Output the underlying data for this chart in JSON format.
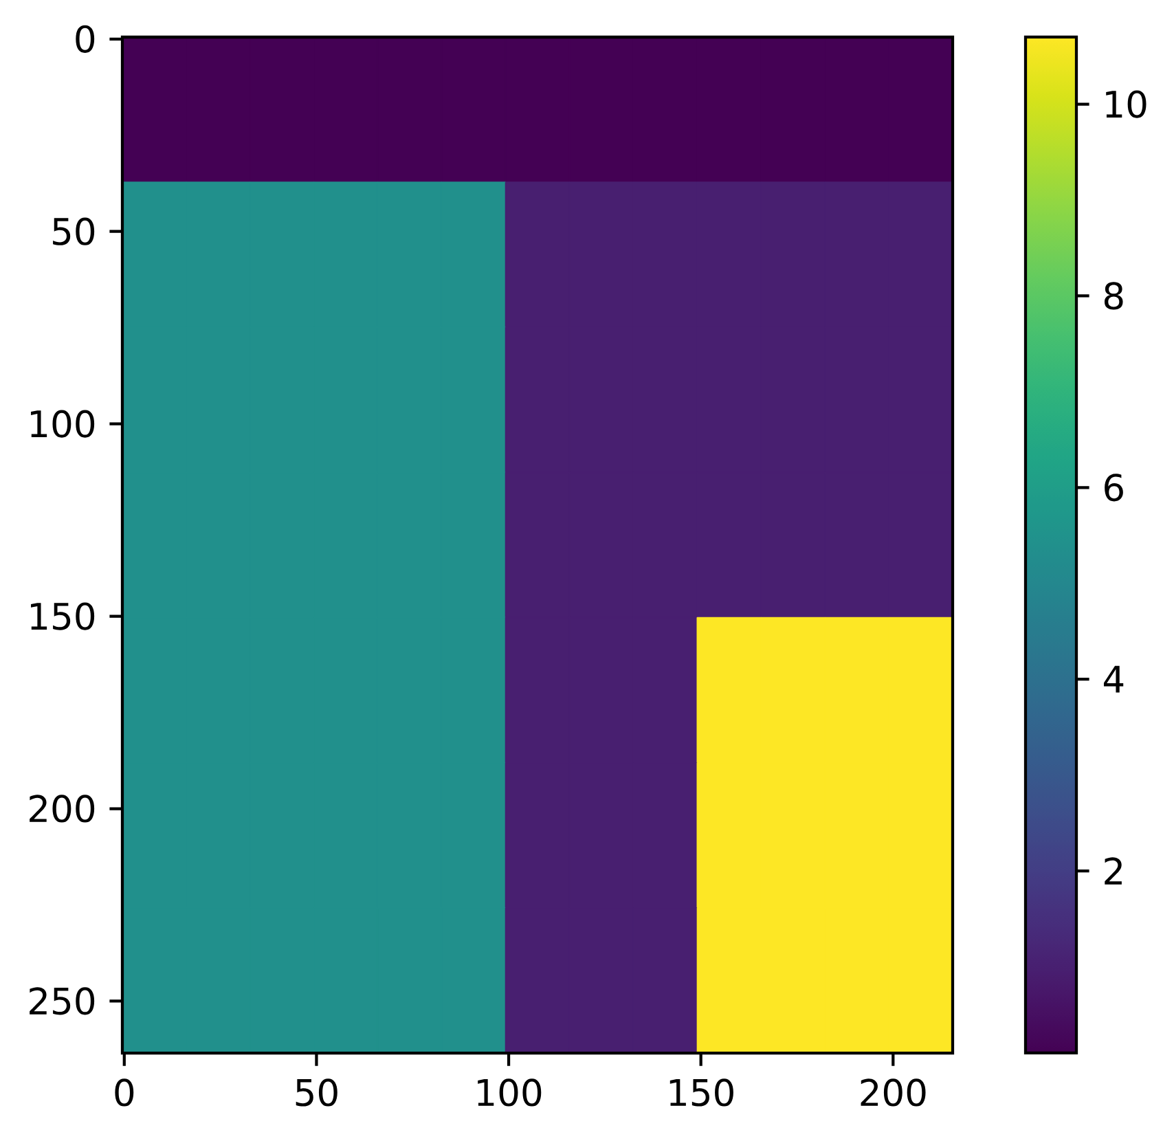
{
  "chart_data": {
    "type": "heatmap",
    "cells": [
      [
        0.1,
        0.1,
        0.1,
        0.1,
        0.1,
        0.1,
        0.1,
        0.1,
        0.1,
        0.1,
        0.1,
        0.1,
        0.1
      ],
      [
        5.4,
        5.4,
        5.4,
        5.4,
        5.4,
        5.4,
        1.0,
        1.0,
        1.0,
        1.0,
        1.0,
        1.0,
        1.0
      ],
      [
        5.4,
        5.4,
        5.4,
        5.4,
        5.4,
        5.4,
        1.0,
        1.0,
        1.0,
        1.0,
        1.0,
        1.0,
        1.0
      ],
      [
        5.4,
        5.4,
        5.4,
        5.4,
        5.4,
        5.4,
        1.0,
        1.0,
        1.0,
        1.0,
        1.0,
        1.0,
        1.0
      ],
      [
        5.4,
        5.4,
        5.4,
        5.4,
        5.4,
        5.4,
        1.0,
        1.0,
        1.0,
        10.7,
        10.7,
        10.7,
        10.7
      ],
      [
        5.4,
        5.4,
        5.4,
        5.4,
        5.4,
        5.4,
        1.0,
        1.0,
        1.0,
        10.7,
        10.7,
        10.7,
        10.7
      ],
      [
        5.4,
        5.4,
        5.4,
        5.4,
        5.4,
        5.4,
        1.0,
        1.0,
        1.0,
        10.7,
        10.7,
        10.7,
        10.7
      ]
    ],
    "xlim": [
      -0.5,
      215.5
    ],
    "ylim": [
      263.5,
      -0.5
    ],
    "xticks": [
      0,
      50,
      100,
      150,
      200
    ],
    "yticks": [
      0,
      50,
      100,
      150,
      200,
      250
    ],
    "clim": [
      0.1,
      10.7
    ],
    "cticks": [
      2,
      4,
      6,
      8,
      10
    ]
  }
}
